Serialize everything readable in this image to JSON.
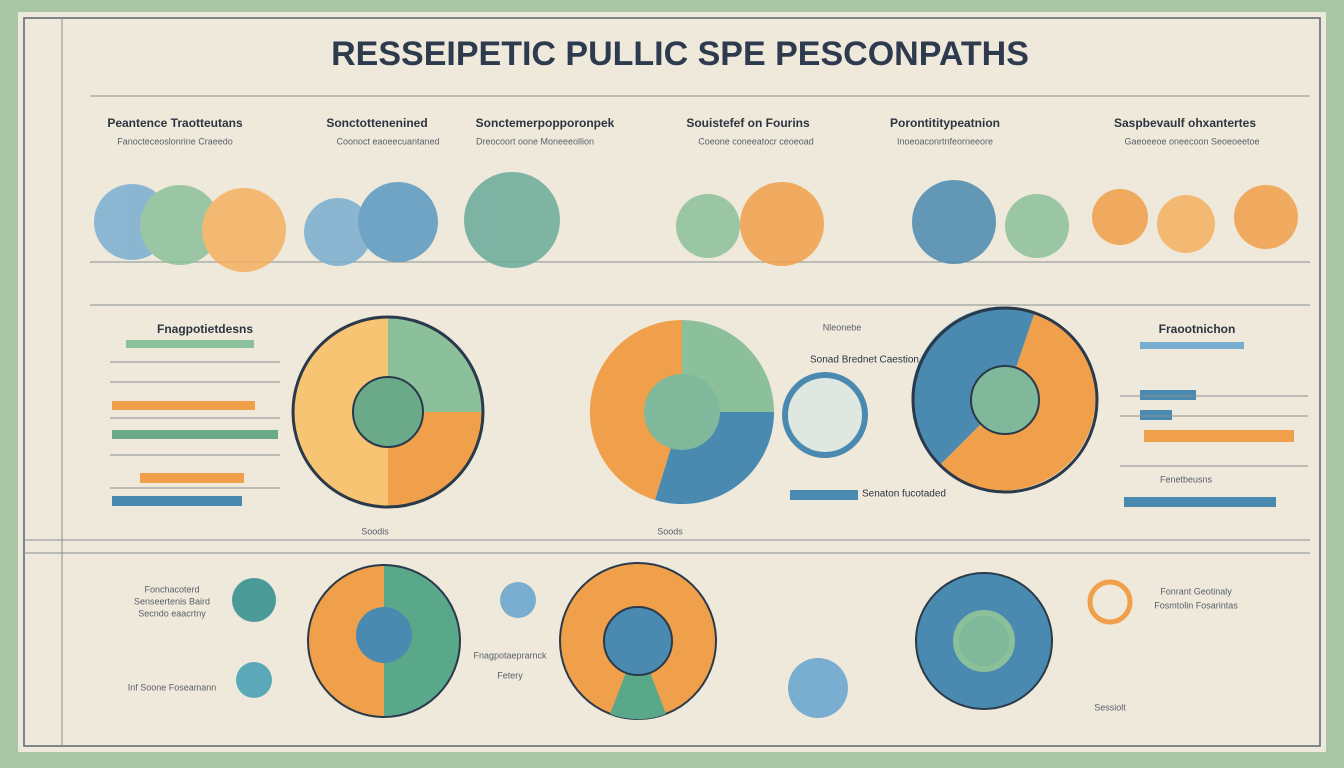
{
  "title": "RESSEIPETIC PULLIC SPE PESCONPATHS",
  "top_sections": [
    {
      "heading": "Peantence Traotteutans",
      "caption": "Fanocteceoslonrine Craeedo"
    },
    {
      "heading": "Sonctottenenined",
      "caption": "Coonoct eaoeecuantaned"
    },
    {
      "heading": "Sonctemerpopporonpek",
      "caption": "Dreocoort oone Moneeeollion"
    },
    {
      "heading": "Souistefef on Fourins",
      "caption": "Coeone coneeatocr ceoeoad"
    },
    {
      "heading": "Porontititypeatnion",
      "caption": "Inoeoaconrtnfeorneeore"
    },
    {
      "heading": "Saspbevaulf ohxantertes",
      "caption": "Gaeoeeoe oneecoon Seoeoeetoe"
    }
  ],
  "middle_labels": {
    "left_heading": "Fnagpotietdesns",
    "center_note": "Nleonebe",
    "center_caption": "Sonad Brednet Caestion",
    "right_heading": "Fraootnichon",
    "right_caption": "Fenetbeusns",
    "bar_caption": "Senaton fucotaded",
    "mark_a": "Soodis",
    "mark_b": "Soods"
  },
  "bottom_labels": {
    "left_a": "Fonchacoterd",
    "left_b": "Senseertenis Baird",
    "left_c": "Secndo eaacrtny",
    "left_d": "Inf Soone Foseamann",
    "center": "Fnagpotaeprarnck",
    "center_sub": "Fetery",
    "right_a": "Fonrant Geotinaly",
    "right_b": "Fosmtolin Fosarintas",
    "right_c": "Sessiolt"
  }
}
